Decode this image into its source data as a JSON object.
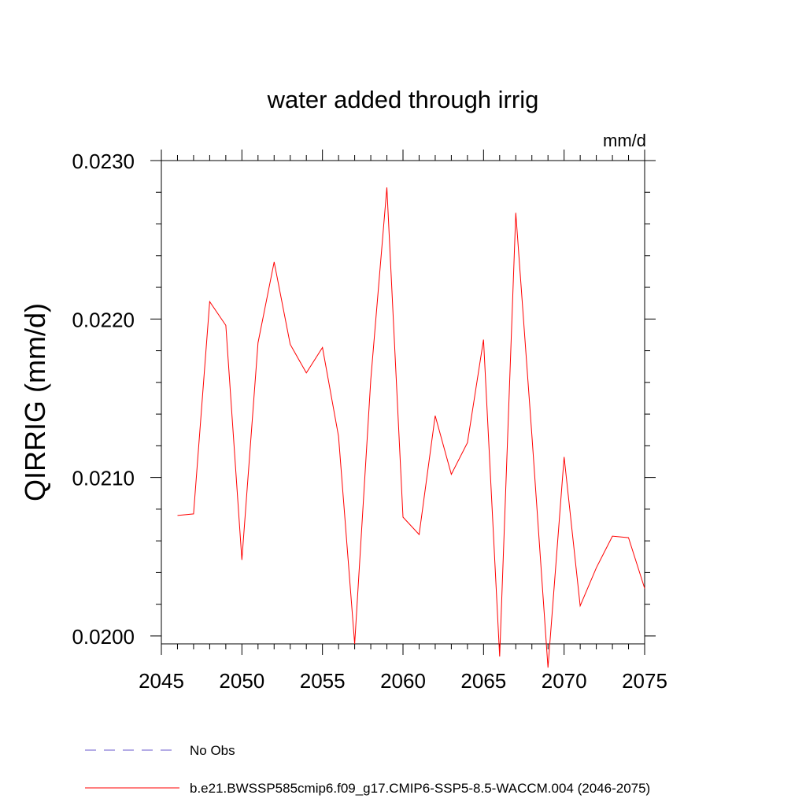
{
  "chart_data": {
    "type": "line",
    "title": "water added through irrig",
    "units": "mm/d",
    "xlabel": "",
    "ylabel": "QIRRIG  (mm/d)",
    "xlim": [
      2045,
      2075
    ],
    "ylim": [
      0.01995,
      0.023
    ],
    "x_ticks": [
      2045,
      2050,
      2055,
      2060,
      2065,
      2070,
      2075
    ],
    "x_tick_labels": [
      "2045",
      "2050",
      "2055",
      "2060",
      "2065",
      "2070",
      "2075"
    ],
    "y_ticks": [
      0.02,
      0.021,
      0.022,
      0.023
    ],
    "y_tick_labels": [
      "0.0200",
      "0.0210",
      "0.0220",
      "0.0230"
    ],
    "y_minor_step": 0.0002,
    "x_minor_step": 1,
    "series": [
      {
        "name": "b.e21.BWSSP585cmip6.f09_g17.CMIP6-SSP5-8.5-WACCM.004 (2046-2075)",
        "color": "#ff0000",
        "x": [
          2046,
          2047,
          2048,
          2049,
          2050,
          2051,
          2052,
          2053,
          2054,
          2055,
          2056,
          2057,
          2058,
          2059,
          2060,
          2061,
          2062,
          2063,
          2064,
          2065,
          2066,
          2067,
          2068,
          2069,
          2070,
          2071,
          2072,
          2073,
          2074,
          2075
        ],
        "values": [
          0.02076,
          0.02077,
          0.02211,
          0.02196,
          0.02048,
          0.02185,
          0.02236,
          0.02184,
          0.02166,
          0.02182,
          0.02126,
          0.01995,
          0.02162,
          0.02283,
          0.02075,
          0.02064,
          0.02139,
          0.02102,
          0.02122,
          0.02187,
          0.01987,
          0.02267,
          0.02127,
          0.0198,
          0.02113,
          0.02019,
          0.02043,
          0.02063,
          0.02062,
          0.0203
        ]
      }
    ],
    "legend": [
      {
        "label": "No Obs",
        "color": "#6a5acd",
        "style": "dashed"
      },
      {
        "label": "b.e21.BWSSP585cmip6.f09_g17.CMIP6-SSP5-8.5-WACCM.004 (2046-2075)",
        "color": "#ff0000",
        "style": "solid"
      }
    ]
  }
}
